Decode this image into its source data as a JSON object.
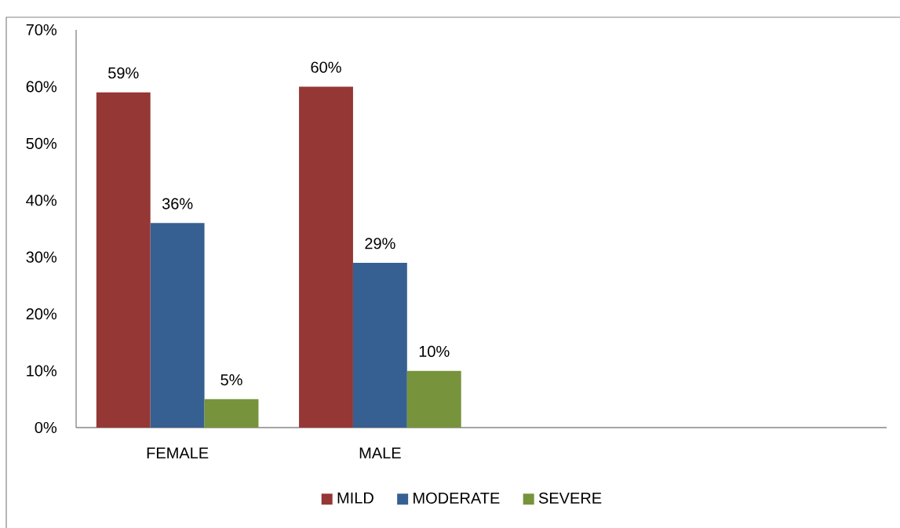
{
  "chart_data": {
    "type": "bar",
    "categories": [
      "FEMALE",
      "MALE",
      null,
      null
    ],
    "series": [
      {
        "name": "MILD",
        "color": "#953735",
        "values": [
          59,
          60,
          null,
          null
        ],
        "value_labels": [
          "59%",
          "60%",
          null,
          null
        ]
      },
      {
        "name": "MODERATE",
        "color": "#366092",
        "values": [
          36,
          29,
          null,
          null
        ],
        "value_labels": [
          "36%",
          "29%",
          null,
          null
        ]
      },
      {
        "name": "SEVERE",
        "color": "#77933c",
        "values": [
          5,
          10,
          null,
          null
        ],
        "value_labels": [
          "5%",
          "10%",
          null,
          null
        ]
      }
    ],
    "ylim": [
      0,
      70
    ],
    "yticks": [
      {
        "value": 0,
        "label": "0%"
      },
      {
        "value": 10,
        "label": "10%"
      },
      {
        "value": 20,
        "label": "20%"
      },
      {
        "value": 30,
        "label": "30%"
      },
      {
        "value": 40,
        "label": "40%"
      },
      {
        "value": 50,
        "label": "50%"
      },
      {
        "value": 60,
        "label": "60%"
      },
      {
        "value": 70,
        "label": "70%"
      }
    ],
    "legend": "bottom"
  }
}
